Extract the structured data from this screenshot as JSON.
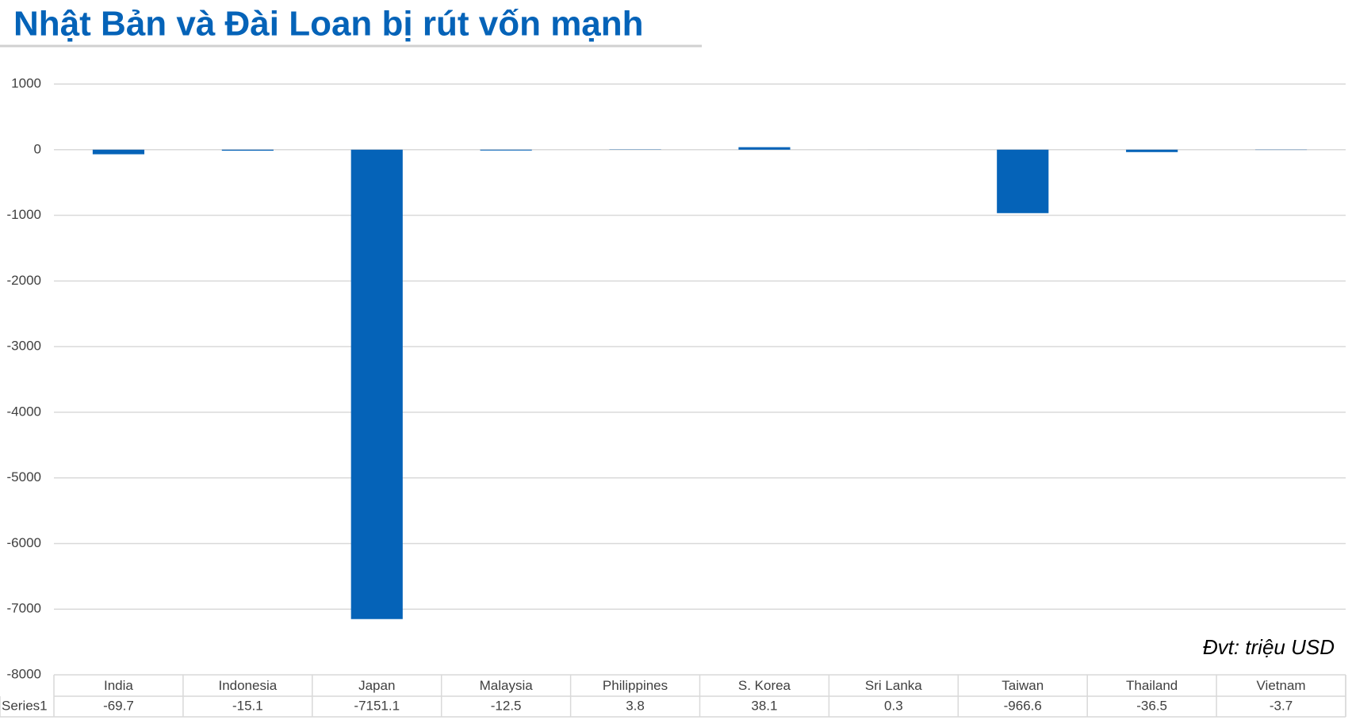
{
  "chart_data": {
    "type": "bar",
    "title": "Nhật Bản và Đài Loan bị rút vốn mạnh",
    "annotation": "Đvt: triệu USD",
    "categories": [
      "India",
      "Indonesia",
      "Japan",
      "Malaysia",
      "Philippines",
      "S. Korea",
      "Sri Lanka",
      "Taiwan",
      "Thailand",
      "Vietnam"
    ],
    "series": [
      {
        "name": "Series1",
        "color": "#0563b8",
        "values": [
          -69.7,
          -15.1,
          -7151.1,
          -12.5,
          3.8,
          38.1,
          0.3,
          -966.6,
          -36.5,
          -3.7
        ]
      }
    ],
    "ylim": [
      -8000,
      1000
    ],
    "yticks": [
      1000,
      0,
      -1000,
      -2000,
      -3000,
      -4000,
      -5000,
      -6000,
      -7000,
      -8000
    ],
    "grid": true
  }
}
